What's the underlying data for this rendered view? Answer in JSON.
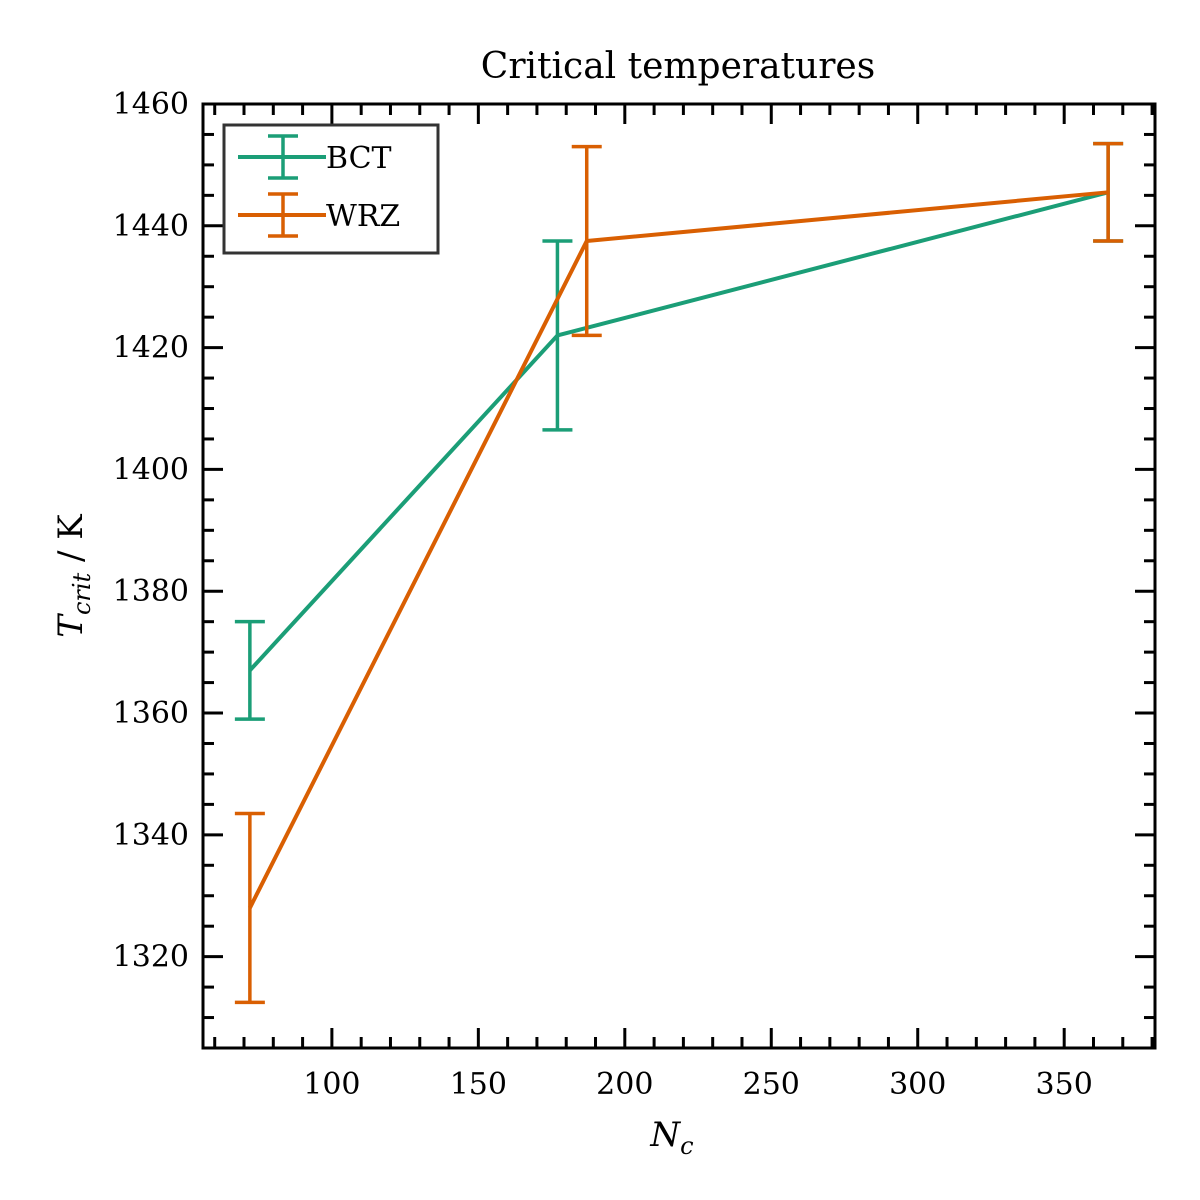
{
  "chart_data": {
    "type": "line",
    "title": "Critical temperatures",
    "xlabel": "N_c",
    "xlabel_main": "N",
    "xlabel_sub": "c",
    "ylabel": "T_crit / K",
    "ylabel_main": "T",
    "ylabel_sub": "crit",
    "ylabel_unit": " / K",
    "xlim": [
      56,
      381
    ],
    "ylim": [
      1305,
      1460
    ],
    "xticks": [
      100,
      150,
      200,
      250,
      300,
      350
    ],
    "yticks": [
      1320,
      1340,
      1360,
      1380,
      1400,
      1420,
      1440,
      1460
    ],
    "xtick_labels": [
      "100",
      "150",
      "200",
      "250",
      "300",
      "350"
    ],
    "ytick_labels": [
      "1320",
      "1340",
      "1360",
      "1380",
      "1400",
      "1420",
      "1440",
      "1460"
    ],
    "legend_position": "upper-left",
    "grid": false,
    "series": [
      {
        "name": "BCT",
        "color": "#1b9e77",
        "x": [
          72,
          177,
          365
        ],
        "y": [
          1367,
          1422,
          1445.5
        ],
        "yerr": [
          8,
          15.5,
          8
        ]
      },
      {
        "name": "WRZ",
        "color": "#d95f02",
        "x": [
          72,
          187,
          365
        ],
        "y": [
          1328,
          1437.5,
          1445.5
        ],
        "yerr": [
          15.5,
          15.5,
          8
        ]
      }
    ]
  }
}
